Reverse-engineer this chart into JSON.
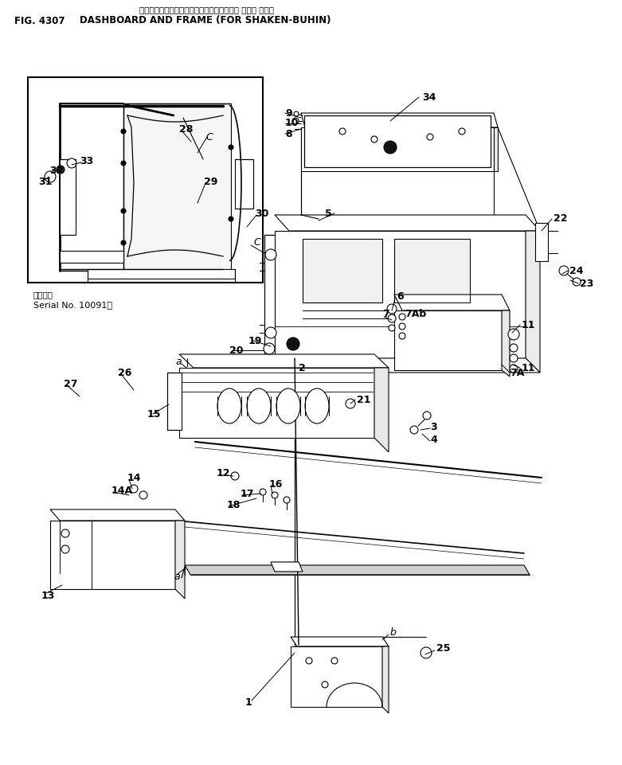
{
  "title_jp": "ダッシュボード　および　フレーム　(シャケン　アヒン　ヨウ)",
  "title_en": "DASHBOARD AND FRAME (FOR SHAKEN-BUHIN)",
  "fig": "FIG. 4307",
  "serial1": "通用号機",
  "serial2": "Serial No. 10091～",
  "bg": "#ffffff",
  "lc": "#000000",
  "figsize": [
    7.81,
    9.61
  ],
  "dpi": 100
}
